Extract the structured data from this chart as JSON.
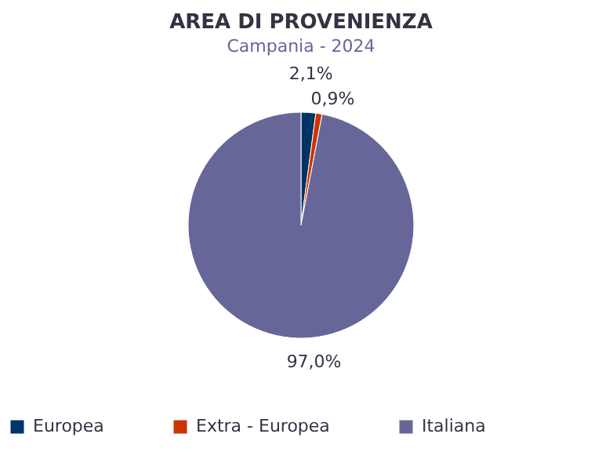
{
  "chart_data": {
    "type": "pie",
    "title": "AREA DI PROVENIENZA",
    "subtitle": "Campania - 2024",
    "categories": [
      "Europea",
      "Extra - Europea",
      "Italiana"
    ],
    "values": [
      2.1,
      0.9,
      97.0
    ],
    "value_labels": [
      "2,1%",
      "0,9%",
      "97,0%"
    ],
    "colors": [
      "#003366",
      "#cc3300",
      "#666699"
    ],
    "legend": "bottom"
  }
}
